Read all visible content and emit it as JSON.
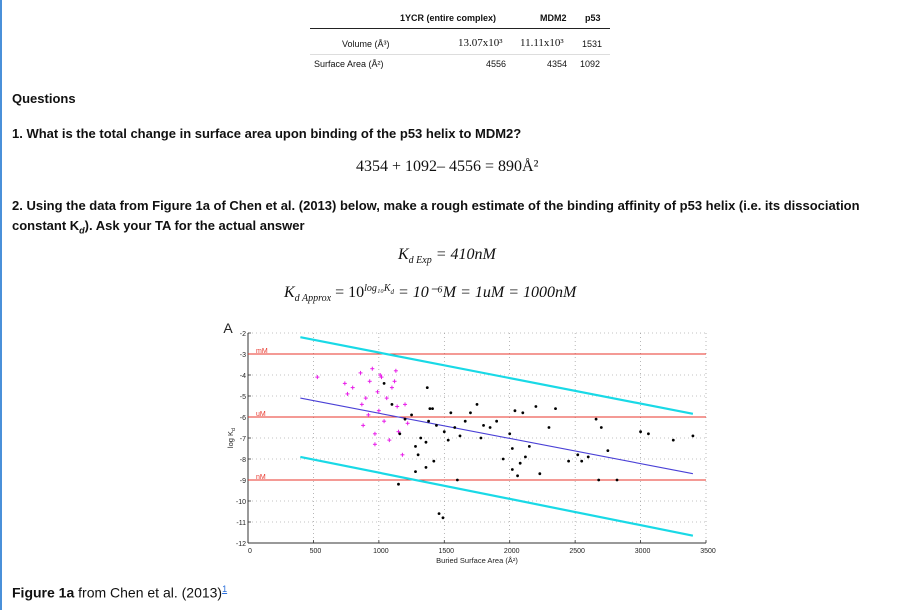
{
  "table": {
    "col_headers": [
      "1YCR (entire complex)",
      "MDM2",
      "p53"
    ],
    "rows": [
      {
        "label": "Volume (Å³)",
        "values": [
          "13.07x10³",
          "11.11x10³",
          "1531"
        ]
      },
      {
        "label": "Surface Area (Å²)",
        "values": [
          "4556",
          "4354",
          "1092"
        ]
      }
    ]
  },
  "questions_heading": "Questions",
  "q1": {
    "text": "1. What is the total change in surface area upon binding of the p53 helix to MDM2?",
    "equation": "4354 + 1092– 4556 = 890Å²"
  },
  "q2": {
    "text": "2. Using the data from Figure 1a of Chen et al. (2013) below, make a rough estimate of the binding affinity of p53 helix (i.e. its dissociation constant K",
    "text_sub": "d",
    "text_tail": "). Ask your TA for the actual answer",
    "eq1_lhs": "K",
    "eq1_sub": "d Exp",
    "eq1_rhs": " = 410nM",
    "eq2_lhs": "K",
    "eq2_sub": "d Approx",
    "eq2_mid": " = 10",
    "eq2_sup": "log₁₀K",
    "eq2_supsub": "d",
    "eq2_rhs": " = 10⁻⁶M = 1uM = 1000nM"
  },
  "caption": {
    "bold": "Figure 1a",
    "text": " from Chen et al. (2013)",
    "ref": "1"
  },
  "chart_data": {
    "type": "scatter",
    "panel_label": "A",
    "xlabel": "Buried Surface Area (Å²)",
    "ylabel": "log K",
    "ylabel_sub": "d",
    "xlim": [
      0,
      3500
    ],
    "ylim": [
      -12,
      -2
    ],
    "xticks": [
      0,
      500,
      1000,
      1500,
      2000,
      2500,
      3000,
      3500
    ],
    "yticks": [
      -2,
      -3,
      -4,
      -5,
      -6,
      -7,
      -8,
      -9,
      -10,
      -11,
      -12
    ],
    "grid": "dotted",
    "hlines": [
      {
        "label": "mM",
        "y": -3,
        "color": "#e8362b"
      },
      {
        "label": "uM",
        "y": -6,
        "color": "#e8362b"
      },
      {
        "label": "nM",
        "y": -9,
        "color": "#e8362b"
      }
    ],
    "trend_lines": [
      {
        "role": "upper",
        "color": "#19d9e6",
        "x": [
          400,
          3400
        ],
        "y": [
          -2.2,
          -5.85
        ]
      },
      {
        "role": "fit",
        "color": "#4a40d6",
        "x": [
          400,
          3400
        ],
        "y": [
          -5.1,
          -8.7
        ]
      },
      {
        "role": "lower",
        "color": "#19d9e6",
        "x": [
          400,
          3400
        ],
        "y": [
          -7.9,
          -11.65
        ]
      }
    ],
    "series": [
      {
        "color": "#e81ee8",
        "marker": "plus",
        "points": [
          [
            530,
            -4.1
          ],
          [
            740,
            -4.4
          ],
          [
            760,
            -4.9
          ],
          [
            800,
            -4.6
          ],
          [
            860,
            -3.9
          ],
          [
            870,
            -5.4
          ],
          [
            880,
            -6.4
          ],
          [
            900,
            -5.1
          ],
          [
            930,
            -4.3
          ],
          [
            950,
            -3.7
          ],
          [
            970,
            -6.8
          ],
          [
            990,
            -4.8
          ],
          [
            1000,
            -5.7
          ],
          [
            1020,
            -4.1
          ],
          [
            1040,
            -6.2
          ],
          [
            1060,
            -5.1
          ],
          [
            1080,
            -7.1
          ],
          [
            1100,
            -4.6
          ],
          [
            1120,
            -4.3
          ],
          [
            1140,
            -5.5
          ],
          [
            1150,
            -6.7
          ],
          [
            1180,
            -7.8
          ],
          [
            1200,
            -5.4
          ],
          [
            1220,
            -6.3
          ],
          [
            920,
            -5.9
          ],
          [
            1010,
            -4.0
          ],
          [
            1130,
            -3.8
          ],
          [
            970,
            -7.3
          ]
        ]
      },
      {
        "color": "#000000",
        "marker": "dot",
        "points": [
          [
            1040,
            -4.4
          ],
          [
            1100,
            -5.4
          ],
          [
            1160,
            -6.8
          ],
          [
            1200,
            -6.1
          ],
          [
            1250,
            -5.9
          ],
          [
            1280,
            -8.6
          ],
          [
            1320,
            -7.0
          ],
          [
            1360,
            -8.4
          ],
          [
            1370,
            -4.6
          ],
          [
            1390,
            -5.6
          ],
          [
            1410,
            -5.6
          ],
          [
            1420,
            -8.1
          ],
          [
            1440,
            -6.4
          ],
          [
            1460,
            -10.6
          ],
          [
            1490,
            -10.8
          ],
          [
            1500,
            -6.7
          ],
          [
            1530,
            -7.1
          ],
          [
            1550,
            -5.8
          ],
          [
            1580,
            -6.5
          ],
          [
            1600,
            -9.0
          ],
          [
            1620,
            -6.9
          ],
          [
            1660,
            -6.2
          ],
          [
            1700,
            -5.8
          ],
          [
            1750,
            -5.4
          ],
          [
            1780,
            -7.0
          ],
          [
            1850,
            -6.5
          ],
          [
            1900,
            -6.2
          ],
          [
            1950,
            -8.0
          ],
          [
            2000,
            -6.8
          ],
          [
            2020,
            -8.5
          ],
          [
            2040,
            -5.7
          ],
          [
            2060,
            -8.8
          ],
          [
            2080,
            -8.2
          ],
          [
            2100,
            -5.8
          ],
          [
            2120,
            -7.9
          ],
          [
            2150,
            -7.4
          ],
          [
            2200,
            -5.5
          ],
          [
            2230,
            -8.7
          ],
          [
            2300,
            -6.5
          ],
          [
            2350,
            -5.6
          ],
          [
            2450,
            -8.1
          ],
          [
            2520,
            -7.8
          ],
          [
            2550,
            -8.1
          ],
          [
            2600,
            -7.9
          ],
          [
            2660,
            -6.1
          ],
          [
            2680,
            -9.0
          ],
          [
            2700,
            -6.5
          ],
          [
            2750,
            -7.6
          ],
          [
            2820,
            -9.0
          ],
          [
            3000,
            -6.7
          ],
          [
            3060,
            -6.8
          ],
          [
            3250,
            -7.1
          ],
          [
            3400,
            -6.9
          ],
          [
            1280,
            -7.4
          ],
          [
            1300,
            -7.8
          ],
          [
            1380,
            -6.2
          ],
          [
            1150,
            -9.2
          ],
          [
            1360,
            -7.2
          ],
          [
            1800,
            -6.4
          ],
          [
            2020,
            -7.5
          ]
        ]
      }
    ]
  }
}
